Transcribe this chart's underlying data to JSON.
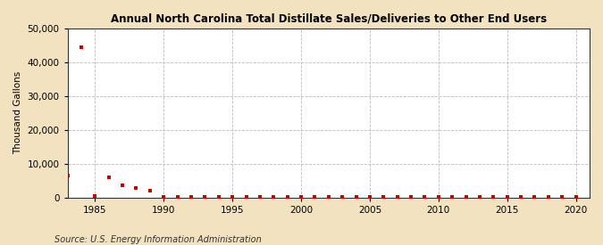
{
  "title": "Annual North Carolina Total Distillate Sales/Deliveries to Other End Users",
  "ylabel": "Thousand Gallons",
  "source": "Source: U.S. Energy Information Administration",
  "fig_background_color": "#f3e2c0",
  "plot_background_color": "#ffffff",
  "marker_color": "#cc0000",
  "marker": "s",
  "marker_size": 3,
  "xlim": [
    1983,
    2021
  ],
  "ylim": [
    0,
    50000
  ],
  "yticks": [
    0,
    10000,
    20000,
    30000,
    40000,
    50000
  ],
  "xticks": [
    1985,
    1990,
    1995,
    2000,
    2005,
    2010,
    2015,
    2020
  ],
  "years": [
    1983,
    1984,
    1985,
    1986,
    1987,
    1988,
    1989,
    1990,
    1991,
    1992,
    1993,
    1994,
    1995,
    1996,
    1997,
    1998,
    1999,
    2000,
    2001,
    2002,
    2003,
    2004,
    2005,
    2006,
    2007,
    2008,
    2009,
    2010,
    2011,
    2012,
    2013,
    2014,
    2015,
    2016,
    2017,
    2018,
    2019,
    2020
  ],
  "values": [
    6500,
    44500,
    400,
    6000,
    3500,
    2800,
    2100,
    200,
    150,
    100,
    80,
    80,
    80,
    80,
    80,
    80,
    80,
    80,
    80,
    80,
    80,
    80,
    80,
    80,
    80,
    80,
    80,
    80,
    80,
    80,
    80,
    80,
    80,
    80,
    80,
    80,
    80,
    80
  ]
}
